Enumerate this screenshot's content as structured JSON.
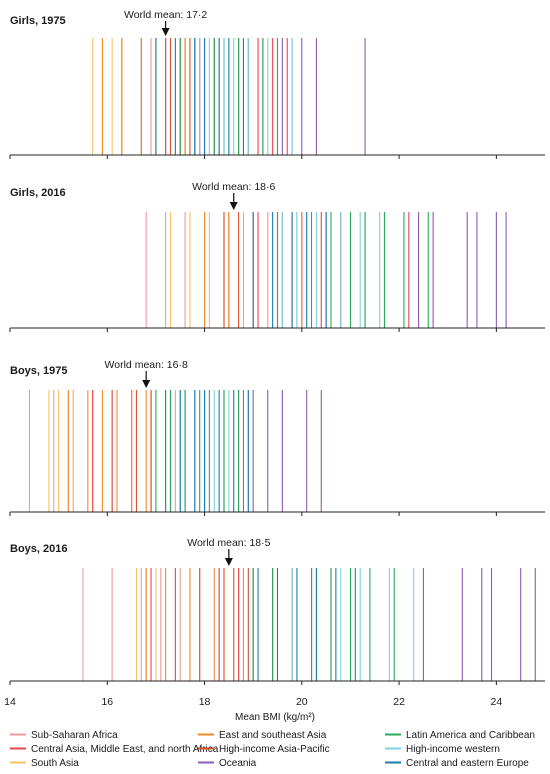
{
  "chart_data": {
    "type": "strip",
    "xlabel": "Mean BMI (kg/m²)",
    "xlim": [
      14,
      25
    ],
    "xticks": [
      14,
      16,
      18,
      20,
      22,
      24
    ],
    "xtick_labels": [
      "14",
      "16",
      "18",
      "20",
      "22",
      "24"
    ],
    "legend": [
      {
        "name": "Sub-Saharan Africa",
        "color": "#f29a9a"
      },
      {
        "name": "Central Asia, Middle East, and north Africa",
        "color": "#e8474d"
      },
      {
        "name": "South Asia",
        "color": "#f6c167"
      },
      {
        "name": "East and southeast Asia",
        "color": "#f08a2b"
      },
      {
        "name": "High-income Asia-Pacific",
        "color": "#d4532a"
      },
      {
        "name": "Oceania",
        "color": "#8a5cb5"
      },
      {
        "name": "Latin America and Caribbean",
        "color": "#2aa95d"
      },
      {
        "name": "High-income western",
        "color": "#7fd0e0"
      },
      {
        "name": "Central and eastern Europe",
        "color": "#1a7ab0"
      }
    ],
    "panels": [
      {
        "title": "Girls, 1975",
        "world_mean": 17.2,
        "world_mean_label": "World mean: 17·2",
        "regions": [
          [
            16.3,
            16.9,
            17.2,
            17.6,
            17.9,
            18.3,
            18.7,
            19.1
          ],
          [
            16.7,
            17.2,
            17.6,
            17.9,
            18.2,
            18.4,
            18.7,
            19.1,
            19.4,
            19.7
          ],
          [
            15.7,
            15.9,
            16.1,
            16.3
          ],
          [
            15.9,
            16.3,
            16.7,
            17.0,
            17.3,
            17.6
          ],
          [
            17.3,
            17.5,
            17.7
          ],
          [
            19.2,
            19.6,
            19.8,
            20.0,
            20.3,
            21.3
          ],
          [
            17.5,
            17.8,
            18.0,
            18.2,
            18.4,
            18.7,
            18.9,
            19.2,
            19.5
          ],
          [
            17.9,
            18.1,
            18.4,
            18.6,
            18.9,
            19.3,
            19.8
          ],
          [
            17.0,
            17.4,
            17.8,
            18.0,
            18.3,
            18.5,
            18.8
          ]
        ]
      },
      {
        "title": "Girls, 2016",
        "world_mean": 18.6,
        "world_mean_label": "World mean: 18·6",
        "regions": [
          [
            16.8,
            17.2,
            17.6,
            18.0,
            18.4,
            18.8,
            19.3,
            19.8,
            20.5
          ],
          [
            18.5,
            19.1,
            19.6,
            20.0,
            20.4,
            20.8,
            21.3,
            21.7,
            22.2
          ],
          [
            17.3,
            17.7,
            18.1
          ],
          [
            18.0,
            18.5,
            19.0,
            19.5,
            20.0
          ],
          [
            18.4,
            18.7
          ],
          [
            22.4,
            22.7,
            23.4,
            23.6,
            24.0,
            24.2
          ],
          [
            19.5,
            19.9,
            20.2,
            20.6,
            21.0,
            21.3,
            21.7,
            22.1,
            22.6
          ],
          [
            19.6,
            19.9,
            20.3,
            20.8,
            21.2,
            21.6
          ],
          [
            19.0,
            19.4,
            19.8,
            20.1,
            20.5
          ]
        ]
      },
      {
        "title": "Boys, 1975",
        "world_mean": 16.8,
        "world_mean_label": "World mean: 16·8",
        "regions": [
          [
            14.4,
            14.9,
            15.3,
            15.7,
            16.1,
            16.5,
            16.9,
            17.4
          ],
          [
            15.7,
            16.1,
            16.5,
            16.9,
            17.3,
            17.6,
            18.0,
            18.4,
            18.8
          ],
          [
            14.8,
            15.0,
            15.2
          ],
          [
            15.2,
            15.6,
            15.9,
            16.2,
            16.5,
            16.8
          ],
          [
            16.6,
            16.9,
            17.3
          ],
          [
            18.7,
            19.0,
            19.3,
            19.6,
            20.1,
            20.4
          ],
          [
            17.0,
            17.3,
            17.6,
            17.9,
            18.1,
            18.4,
            18.7
          ],
          [
            17.5,
            17.8,
            18.2,
            18.5,
            18.9
          ],
          [
            17.2,
            17.5,
            17.8,
            18.0,
            18.3,
            18.6,
            18.9
          ]
        ]
      },
      {
        "title": "Boys, 2016",
        "world_mean": 18.5,
        "world_mean_label": "World mean: 18·5",
        "regions": [
          [
            15.5,
            16.1,
            16.7,
            17.1,
            17.5,
            17.9,
            18.3,
            18.7
          ],
          [
            16.9,
            17.4,
            17.9,
            18.3,
            18.7,
            19.0,
            19.4,
            19.8,
            20.2,
            20.6
          ],
          [
            16.6,
            16.8,
            17.0
          ],
          [
            16.8,
            17.2,
            17.7,
            18.2,
            18.8
          ],
          [
            18.4,
            18.6,
            18.9
          ],
          [
            23.3,
            23.7,
            23.9,
            24.5,
            24.8,
            22.5
          ],
          [
            19.0,
            19.4,
            19.8,
            20.2,
            20.6,
            21.0,
            21.4,
            21.9
          ],
          [
            19.8,
            20.3,
            20.8,
            21.2,
            21.8,
            22.3
          ],
          [
            19.1,
            19.5,
            19.9,
            20.3,
            20.7,
            21.1
          ]
        ]
      }
    ]
  }
}
